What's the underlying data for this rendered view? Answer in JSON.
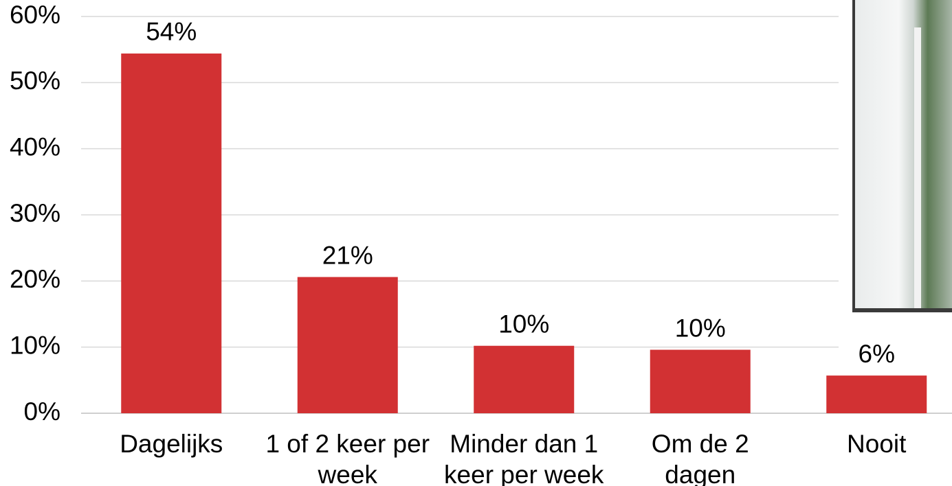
{
  "chart_data": {
    "type": "bar",
    "categories": [
      "Dagelijks",
      "1 of 2 keer per week",
      "Minder dan 1 keer per week",
      "Om de 2 dagen",
      "Nooit"
    ],
    "values": [
      54.4,
      20.6,
      10.2,
      9.6,
      5.7
    ],
    "value_labels": [
      "54%",
      "21%",
      "10%",
      "10%",
      "6%"
    ],
    "color": "#d23133",
    "ylim": [
      0,
      60
    ],
    "yticks": [
      {
        "value": 0,
        "label": "0%"
      },
      {
        "value": 10,
        "label": "10%"
      },
      {
        "value": 20,
        "label": "20%"
      },
      {
        "value": 30,
        "label": "30%"
      },
      {
        "value": 40,
        "label": "40%"
      },
      {
        "value": 50,
        "label": "50%"
      },
      {
        "value": 60,
        "label": "60%"
      }
    ],
    "grid": true
  }
}
